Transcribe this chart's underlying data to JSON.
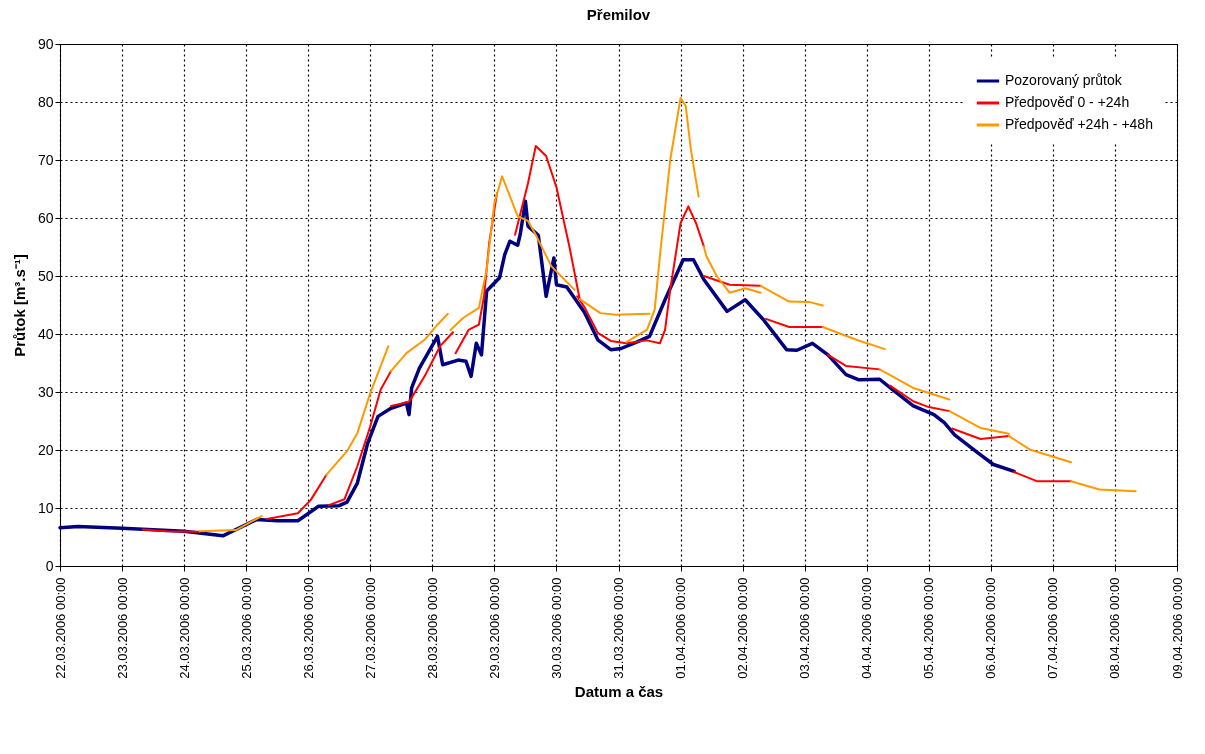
{
  "chart_data": {
    "type": "line",
    "title": "Přemilov",
    "xlabel": "Datum a čas",
    "ylabel": "Průtok [m³.s⁻¹]",
    "xlim": [
      "2006-03-22T00:00",
      "2006-04-09T00:00"
    ],
    "xticks": [
      {
        "value": "2006-03-22T00:00",
        "label": "22.03.2006 00:00"
      },
      {
        "value": "2006-03-23T00:00",
        "label": "23.03.2006 00:00"
      },
      {
        "value": "2006-03-24T00:00",
        "label": "24.03.2006 00:00"
      },
      {
        "value": "2006-03-25T00:00",
        "label": "25.03.2006 00:00"
      },
      {
        "value": "2006-03-26T00:00",
        "label": "26.03.2006 00:00"
      },
      {
        "value": "2006-03-27T00:00",
        "label": "27.03.2006 00:00"
      },
      {
        "value": "2006-03-28T00:00",
        "label": "28.03.2006 00:00"
      },
      {
        "value": "2006-03-29T00:00",
        "label": "29.03.2006 00:00"
      },
      {
        "value": "2006-03-30T00:00",
        "label": "30.03.2006 00:00"
      },
      {
        "value": "2006-03-31T00:00",
        "label": "31.03.2006 00:00"
      },
      {
        "value": "2006-04-01T00:00",
        "label": "01.04.2006 00:00"
      },
      {
        "value": "2006-04-02T00:00",
        "label": "02.04.2006 00:00"
      },
      {
        "value": "2006-04-03T00:00",
        "label": "03.04.2006 00:00"
      },
      {
        "value": "2006-04-04T00:00",
        "label": "04.04.2006 00:00"
      },
      {
        "value": "2006-04-05T00:00",
        "label": "05.04.2006 00:00"
      },
      {
        "value": "2006-04-06T00:00",
        "label": "06.04.2006 00:00"
      },
      {
        "value": "2006-04-07T00:00",
        "label": "07.04.2006 00:00"
      },
      {
        "value": "2006-04-08T00:00",
        "label": "08.04.2006 00:00"
      },
      {
        "value": "2006-04-09T00:00",
        "label": "09.04.2006 00:00"
      }
    ],
    "ylim": [
      0,
      90
    ],
    "yticks": [
      0,
      10,
      20,
      30,
      40,
      50,
      60,
      70,
      80,
      90
    ],
    "grid": true,
    "legend": "top right",
    "series": [
      {
        "name": "Pozorovaný průtok",
        "color": "#000080",
        "x": [
          "2006-03-22T00:00",
          "2006-03-22T07:00",
          "2006-03-23T00:00",
          "2006-03-24T00:00",
          "2006-03-24T15:00",
          "2006-03-25T04:00",
          "2006-03-25T12:00",
          "2006-03-25T20:00",
          "2006-03-26T04:00",
          "2006-03-26T12:00",
          "2006-03-26T15:00",
          "2006-03-26T19:00",
          "2006-03-26T23:00",
          "2006-03-27T03:00",
          "2006-03-27T08:00",
          "2006-03-27T14:00",
          "2006-03-27T15:00",
          "2006-03-27T16:00",
          "2006-03-27T19:00",
          "2006-03-28T02:00",
          "2006-03-28T04:00",
          "2006-03-28T10:00",
          "2006-03-28T13:00",
          "2006-03-28T15:00",
          "2006-03-28T17:00",
          "2006-03-28T19:00",
          "2006-03-28T21:00",
          "2006-03-29T02:00",
          "2006-03-29T04:00",
          "2006-03-29T06:00",
          "2006-03-29T09:00",
          "2006-03-29T10:00",
          "2006-03-29T12:00",
          "2006-03-29T13:00",
          "2006-03-29T17:00",
          "2006-03-29T20:00",
          "2006-03-29T23:00",
          "2006-03-30T00:00",
          "2006-03-30T04:00",
          "2006-03-30T11:00",
          "2006-03-30T16:00",
          "2006-03-30T21:00",
          "2006-03-31T01:00",
          "2006-03-31T07:00",
          "2006-03-31T12:00",
          "2006-03-31T18:00",
          "2006-04-01T01:00",
          "2006-04-01T05:00",
          "2006-04-01T09:00",
          "2006-04-01T18:00",
          "2006-04-02T01:00",
          "2006-04-02T08:00",
          "2006-04-02T17:00",
          "2006-04-02T21:00",
          "2006-04-03T03:00",
          "2006-04-03T09:00",
          "2006-04-03T16:00",
          "2006-04-03T21:00",
          "2006-04-04T05:00",
          "2006-04-04T10:00",
          "2006-04-04T18:00",
          "2006-04-05T02:00",
          "2006-04-05T06:00",
          "2006-04-05T10:00",
          "2006-04-05T19:00",
          "2006-04-06T01:00",
          "2006-04-06T09:00"
        ],
        "values": [
          6.6,
          6.8,
          6.5,
          6.0,
          5.2,
          8.0,
          7.8,
          7.8,
          10.3,
          10.4,
          11.0,
          14.3,
          21.2,
          25.8,
          27.2,
          28.1,
          26.1,
          30.7,
          34.1,
          39.6,
          34.7,
          35.5,
          35.3,
          32.7,
          38.4,
          36.4,
          47.4,
          49.7,
          53.7,
          56.0,
          55.3,
          57.2,
          62.9,
          58.6,
          57.0,
          46.5,
          53.1,
          48.5,
          48.1,
          43.6,
          39.0,
          37.3,
          37.5,
          38.6,
          39.6,
          45.9,
          52.8,
          52.8,
          49.4,
          43.9,
          45.9,
          42.5,
          37.3,
          37.2,
          38.4,
          36.4,
          33.0,
          32.1,
          32.2,
          30.4,
          27.6,
          26.1,
          24.7,
          22.6,
          19.5,
          17.5,
          16.3
        ]
      },
      {
        "name": "Předpověď 0 - +24h",
        "color": "#ff0000",
        "x": [
          "2006-03-23T08:00",
          "2006-03-23T17:00",
          "2006-03-24T06:00",
          null,
          "2006-03-25T08:00",
          "2006-03-25T20:00",
          "2006-03-26T01:00",
          "2006-03-26T07:00",
          null,
          "2006-03-26T08:00",
          "2006-03-26T14:00",
          "2006-03-26T19:00",
          "2006-03-27T00:00",
          "2006-03-27T04:00",
          "2006-03-27T08:00",
          null,
          "2006-03-27T08:00",
          "2006-03-27T15:00",
          "2006-03-27T21:00",
          "2006-03-28T03:00",
          "2006-03-28T08:00",
          null,
          "2006-03-28T09:00",
          "2006-03-28T14:00",
          "2006-03-28T18:00",
          "2006-03-28T20:00",
          "2006-03-28T22:00",
          "2006-03-29T01:00",
          null,
          "2006-03-29T08:00",
          "2006-03-29T13:00",
          "2006-03-29T16:00",
          "2006-03-29T20:00",
          "2006-03-30T00:00",
          "2006-03-30T05:00",
          "2006-03-30T09:00",
          null,
          "2006-03-30T08:00",
          "2006-03-30T11:00",
          "2006-03-30T16:00",
          "2006-03-30T21:00",
          "2006-03-31T03:00",
          "2006-03-31T11:00",
          "2006-03-31T16:00",
          "2006-03-31T18:00",
          "2006-03-31T20:00",
          "2006-04-01T00:00",
          "2006-04-01T03:00",
          "2006-04-01T06:00",
          "2006-04-01T09:00",
          null,
          "2006-04-01T09:00",
          "2006-04-01T19:00",
          "2006-04-02T07:00",
          null,
          "2006-04-02T09:00",
          "2006-04-02T18:00",
          "2006-04-03T07:00",
          null,
          "2006-04-03T09:00",
          "2006-04-03T16:00",
          "2006-04-04T05:00",
          null,
          "2006-04-04T09:00",
          "2006-04-04T18:00",
          "2006-04-05T00:00",
          "2006-04-05T08:00",
          null,
          "2006-04-05T09:00",
          "2006-04-05T20:00",
          "2006-04-06T07:00",
          null,
          "2006-04-06T09:00",
          "2006-04-06T18:00",
          "2006-04-07T07:00"
        ],
        "values": [
          6.3,
          6.0,
          5.9,
          null,
          8.1,
          9.1,
          11.4,
          15.7,
          null,
          10.5,
          11.5,
          17.2,
          24.1,
          30.4,
          33.6,
          null,
          27.6,
          28.3,
          32.7,
          37.9,
          40.3,
          null,
          36.7,
          40.7,
          41.6,
          46.5,
          55.7,
          64.3,
          null,
          57.1,
          66.0,
          72.4,
          70.7,
          65.3,
          55.1,
          46.0,
          null,
          46.5,
          44.5,
          40.2,
          38.8,
          38.4,
          38.9,
          38.4,
          40.7,
          47.6,
          59.1,
          62.0,
          59.1,
          55.1,
          null,
          50.0,
          48.5,
          48.3,
          null,
          42.6,
          41.2,
          41.2,
          null,
          36.4,
          34.5,
          33.9,
          null,
          31.1,
          28.4,
          27.4,
          26.7,
          null,
          23.7,
          21.9,
          22.4,
          null,
          16.2,
          14.6,
          14.6
        ]
      },
      {
        "name": "Předpověď +24h - +48h",
        "color": "#ff9900",
        "x": [
          "2006-03-24T06:00",
          "2006-03-24T20:00",
          "2006-03-25T06:00",
          null,
          "2006-03-26T07:00",
          "2006-03-26T15:00",
          "2006-03-26T19:00",
          "2006-03-27T00:00",
          "2006-03-27T07:00",
          null,
          "2006-03-27T08:00",
          "2006-03-27T14:00",
          "2006-03-27T21:00",
          "2006-03-28T02:00",
          "2006-03-28T06:00",
          null,
          "2006-03-28T07:00",
          "2006-03-28T12:00",
          "2006-03-28T18:00",
          "2006-03-28T21:00",
          "2006-03-29T00:00",
          "2006-03-29T03:00",
          "2006-03-29T09:00",
          "2006-03-29T13:00",
          "2006-03-29T16:00",
          "2006-03-29T22:00",
          "2006-03-30T07:00",
          null,
          "2006-03-30T09:00",
          "2006-03-30T17:00",
          "2006-03-30T23:00",
          "2006-03-31T12:00",
          null,
          "2006-03-31T03:00",
          "2006-03-31T11:00",
          "2006-03-31T14:00",
          "2006-03-31T16:00",
          "2006-03-31T20:00",
          "2006-04-01T00:00",
          "2006-04-01T02:00",
          "2006-04-01T04:00",
          "2006-04-01T07:00",
          null,
          "2006-04-01T09:00",
          "2006-04-01T10:00",
          "2006-04-01T14:00",
          "2006-04-01T19:00",
          "2006-04-02T01:00",
          "2006-04-02T07:00",
          null,
          "2006-04-02T07:00",
          "2006-04-02T18:00",
          "2006-04-03T02:00",
          "2006-04-03T07:00",
          null,
          "2006-04-03T07:00",
          "2006-04-03T20:00",
          "2006-04-04T07:00",
          null,
          "2006-04-04T05:00",
          "2006-04-04T18:00",
          "2006-04-05T08:00",
          null,
          "2006-04-05T08:00",
          "2006-04-05T20:00",
          "2006-04-06T07:00",
          null,
          "2006-04-06T07:00",
          "2006-04-06T15:00",
          "2006-04-07T07:00",
          null,
          "2006-04-07T07:00",
          "2006-04-07T18:00",
          "2006-04-08T08:00"
        ],
        "values": [
          6.0,
          6.2,
          8.6,
          null,
          15.7,
          19.8,
          22.9,
          29.8,
          37.9,
          null,
          33.6,
          36.7,
          39.0,
          41.6,
          43.5,
          null,
          40.7,
          42.8,
          44.5,
          51.1,
          62.6,
          67.2,
          60.3,
          59.5,
          57.1,
          51.7,
          47.6,
          null,
          46.0,
          43.6,
          43.3,
          43.5,
          null,
          38.6,
          40.7,
          44.2,
          53.4,
          70.0,
          80.7,
          79.3,
          71.8,
          63.7,
          null,
          55.1,
          53.4,
          50.0,
          47.1,
          47.9,
          47.1,
          null,
          48.3,
          45.6,
          45.5,
          44.9,
          null,
          41.2,
          39.0,
          37.4,
          null,
          33.9,
          30.7,
          28.7,
          null,
          26.7,
          23.8,
          22.8,
          null,
          22.4,
          20.1,
          17.9,
          null,
          14.6,
          13.2,
          12.9
        ]
      }
    ]
  }
}
